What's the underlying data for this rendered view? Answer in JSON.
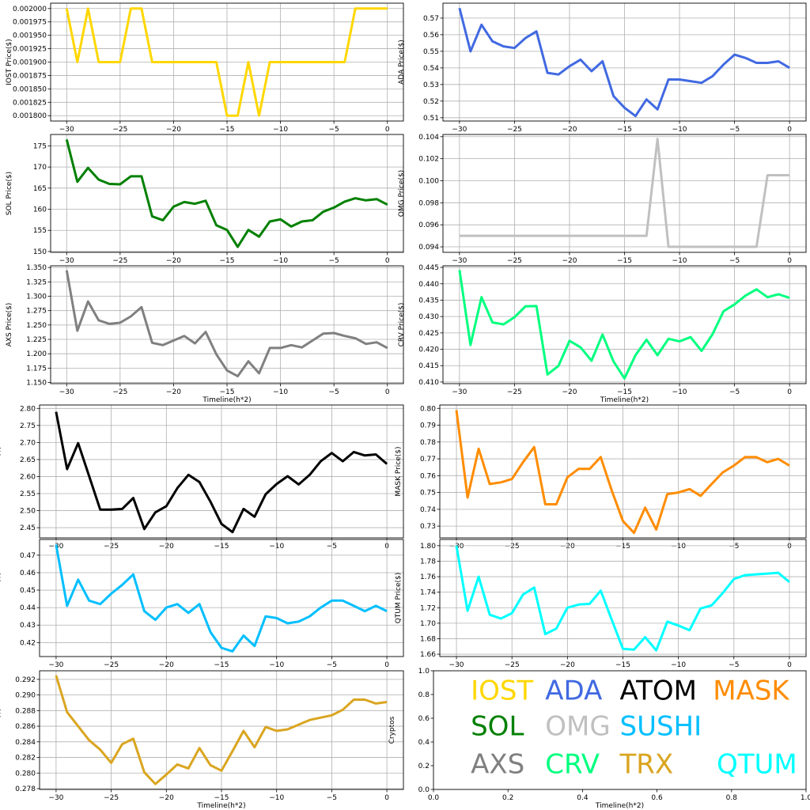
{
  "chart_data": [
    {
      "type": "line",
      "id": "iost",
      "ylabel": "IOST Price($)",
      "color": "#FFD700",
      "x": [
        -30,
        -29,
        -28,
        -27,
        -26,
        -25,
        -24,
        -23,
        -22,
        -21,
        -20,
        -19,
        -18,
        -17,
        -16,
        -15,
        -14,
        -13,
        -12,
        -11,
        -10,
        -9,
        -8,
        -7,
        -6,
        -5,
        -4,
        -3,
        -2,
        -1,
        0
      ],
      "values": [
        0.002,
        0.0019,
        0.002,
        0.0019,
        0.0019,
        0.0019,
        0.002,
        0.002,
        0.0019,
        0.0019,
        0.0019,
        0.0019,
        0.0019,
        0.0019,
        0.0019,
        0.0018,
        0.0018,
        0.0019,
        0.0018,
        0.0019,
        0.0019,
        0.0019,
        0.0019,
        0.0019,
        0.0019,
        0.0019,
        0.0019,
        0.002,
        0.002,
        0.002,
        0.002
      ],
      "xlim": [
        -31.5,
        1.5
      ],
      "ylim": [
        0.00179,
        0.00201
      ],
      "xticks": [
        -30,
        -25,
        -20,
        -15,
        -10,
        -5,
        0
      ],
      "yticks": [
        0.0018,
        0.001825,
        0.00185,
        0.001875,
        0.0019,
        0.001925,
        0.00195,
        0.001975,
        0.002
      ],
      "ytick_labels": [
        "0.001800",
        "0.001825",
        "0.001850",
        "0.001875",
        "0.001900",
        "0.001925",
        "0.001950",
        "0.001975",
        "0.002000"
      ],
      "xlabel": ""
    },
    {
      "type": "line",
      "id": "ada",
      "ylabel": "ADA  Price($)",
      "color": "#4169E1",
      "x": [
        -30,
        -29,
        -28,
        -27,
        -26,
        -25,
        -24,
        -23,
        -22,
        -21,
        -20,
        -19,
        -18,
        -17,
        -16,
        -15,
        -14,
        -13,
        -12,
        -11,
        -10,
        -9,
        -8,
        -7,
        -6,
        -5,
        -4,
        -3,
        -2,
        -1,
        0
      ],
      "values": [
        0.576,
        0.55,
        0.566,
        0.556,
        0.553,
        0.552,
        0.558,
        0.562,
        0.537,
        0.536,
        0.541,
        0.545,
        0.538,
        0.544,
        0.523,
        0.516,
        0.511,
        0.521,
        0.515,
        0.533,
        0.533,
        0.532,
        0.531,
        0.535,
        0.542,
        0.548,
        0.546,
        0.543,
        0.543,
        0.544,
        0.54
      ],
      "xlim": [
        -31.5,
        1.5
      ],
      "ylim": [
        0.508,
        0.579
      ],
      "xticks": [
        -30,
        -25,
        -20,
        -15,
        -10,
        -5,
        0
      ],
      "yticks": [
        0.51,
        0.52,
        0.53,
        0.54,
        0.55,
        0.56,
        0.57
      ],
      "ytick_labels": [
        "0.51",
        "0.52",
        "0.53",
        "0.54",
        "0.55",
        "0.56",
        "0.57"
      ],
      "xlabel": ""
    },
    {
      "type": "line",
      "id": "sol",
      "ylabel": "SOL Price($)",
      "color": "#008000",
      "x": [
        -30,
        -29,
        -28,
        -27,
        -26,
        -25,
        -24,
        -23,
        -22,
        -21,
        -20,
        -19,
        -18,
        -17,
        -16,
        -15,
        -14,
        -13,
        -12,
        -11,
        -10,
        -9,
        -8,
        -7,
        -6,
        -5,
        -4,
        -3,
        -2,
        -1,
        0
      ],
      "values": [
        176.5,
        166.5,
        169.8,
        167,
        166,
        165.9,
        167.8,
        167.8,
        158.3,
        157.4,
        160.6,
        161.7,
        161.3,
        162,
        156.2,
        155.1,
        151.1,
        155.1,
        153.5,
        157.1,
        157.6,
        155.9,
        157.1,
        157.4,
        159.4,
        160.4,
        161.8,
        162.6,
        162.1,
        162.4,
        161.1
      ],
      "xlim": [
        -31.5,
        1.5
      ],
      "ylim": [
        149.8,
        177.7
      ],
      "xticks": [
        -30,
        -25,
        -20,
        -15,
        -10,
        -5,
        0
      ],
      "yticks": [
        150,
        155,
        160,
        165,
        170,
        175
      ],
      "ytick_labels": [
        "150",
        "155",
        "160",
        "165",
        "170",
        "175"
      ],
      "xlabel": ""
    },
    {
      "type": "line",
      "id": "omg",
      "ylabel": "OMG  Price($)",
      "color": "#C0C0C0",
      "x": [
        -30,
        -29,
        -28,
        -27,
        -26,
        -25,
        -24,
        -23,
        -22,
        -21,
        -20,
        -19,
        -18,
        -17,
        -16,
        -15,
        -14,
        -13,
        -12,
        -11,
        -10,
        -9,
        -8,
        -7,
        -6,
        -5,
        -4,
        -3,
        -2,
        -1,
        0
      ],
      "values": [
        0.095,
        0.095,
        0.095,
        0.095,
        0.095,
        0.095,
        0.095,
        0.095,
        0.095,
        0.095,
        0.095,
        0.095,
        0.095,
        0.095,
        0.095,
        0.095,
        0.095,
        0.095,
        0.1038,
        0.094,
        0.094,
        0.094,
        0.094,
        0.094,
        0.094,
        0.094,
        0.094,
        0.094,
        0.1005,
        0.1005,
        0.1005
      ],
      "xlim": [
        -31.5,
        1.5
      ],
      "ylim": [
        0.0935,
        0.1042
      ],
      "xticks": [
        -30,
        -25,
        -20,
        -15,
        -10,
        -5,
        0
      ],
      "yticks": [
        0.094,
        0.096,
        0.098,
        0.1,
        0.102,
        0.104
      ],
      "ytick_labels": [
        "0.094",
        "0.096",
        "0.098",
        "0.100",
        "0.102",
        "0.104"
      ],
      "xlabel": ""
    },
    {
      "type": "line",
      "id": "axs",
      "ylabel": "AXS Price($)",
      "color": "#808080",
      "x": [
        -30,
        -29,
        -28,
        -27,
        -26,
        -25,
        -24,
        -23,
        -22,
        -21,
        -20,
        -19,
        -18,
        -17,
        -16,
        -15,
        -14,
        -13,
        -12,
        -11,
        -10,
        -9,
        -8,
        -7,
        -6,
        -5,
        -4,
        -3,
        -2,
        -1,
        0
      ],
      "values": [
        1.345,
        1.24,
        1.291,
        1.258,
        1.252,
        1.254,
        1.265,
        1.281,
        1.219,
        1.215,
        1.223,
        1.231,
        1.218,
        1.238,
        1.199,
        1.171,
        1.161,
        1.187,
        1.166,
        1.21,
        1.21,
        1.215,
        1.211,
        1.223,
        1.235,
        1.236,
        1.231,
        1.227,
        1.217,
        1.22,
        1.21
      ],
      "xlim": [
        -31.5,
        1.5
      ],
      "ylim": [
        1.148,
        1.353
      ],
      "xticks": [
        -30,
        -25,
        -20,
        -15,
        -10,
        -5,
        0
      ],
      "yticks": [
        1.15,
        1.175,
        1.2,
        1.225,
        1.25,
        1.275,
        1.3,
        1.325,
        1.35
      ],
      "ytick_labels": [
        "1.150",
        "1.175",
        "1.200",
        "1.225",
        "1.250",
        "1.275",
        "1.300",
        "1.325",
        "1.350"
      ],
      "xlabel": "Timeline(h*2)"
    },
    {
      "type": "line",
      "id": "crv",
      "ylabel": "CRV  Price($)",
      "color": "#00FF7F",
      "x": [
        -30,
        -29,
        -28,
        -27,
        -26,
        -25,
        -24,
        -23,
        -22,
        -21,
        -20,
        -19,
        -18,
        -17,
        -16,
        -15,
        -14,
        -13,
        -12,
        -11,
        -10,
        -9,
        -8,
        -7,
        -6,
        -5,
        -4,
        -3,
        -2,
        -1,
        0
      ],
      "values": [
        0.4442,
        0.4213,
        0.4359,
        0.4282,
        0.4276,
        0.4298,
        0.4331,
        0.4332,
        0.4123,
        0.4149,
        0.4226,
        0.4206,
        0.4165,
        0.4245,
        0.4163,
        0.4111,
        0.4182,
        0.4229,
        0.4182,
        0.4232,
        0.4224,
        0.4237,
        0.4195,
        0.4246,
        0.4316,
        0.4337,
        0.4364,
        0.4383,
        0.4359,
        0.4368,
        0.4357
      ],
      "xlim": [
        -31.5,
        1.5
      ],
      "ylim": [
        0.4095,
        0.4455
      ],
      "xticks": [
        -30,
        -25,
        -20,
        -15,
        -10,
        -5,
        0
      ],
      "yticks": [
        0.41,
        0.415,
        0.42,
        0.425,
        0.43,
        0.435,
        0.44,
        0.445
      ],
      "ytick_labels": [
        "0.410",
        "0.415",
        "0.420",
        "0.425",
        "0.430",
        "0.435",
        "0.440",
        "0.445"
      ],
      "xlabel": "Timeline(h*2)"
    },
    {
      "type": "line",
      "id": "atom",
      "ylabel": "ATOM  Price($)",
      "color": "#000000",
      "x": [
        -30,
        -29,
        -28,
        -27,
        -26,
        -25,
        -24,
        -23,
        -22,
        -21,
        -20,
        -19,
        -18,
        -17,
        -16,
        -15,
        -14,
        -13,
        -12,
        -11,
        -10,
        -9,
        -8,
        -7,
        -6,
        -5,
        -4,
        -3,
        -2,
        -1,
        0
      ],
      "values": [
        2.79,
        2.622,
        2.698,
        2.601,
        2.503,
        2.503,
        2.505,
        2.537,
        2.446,
        2.495,
        2.513,
        2.566,
        2.605,
        2.584,
        2.526,
        2.461,
        2.437,
        2.505,
        2.482,
        2.548,
        2.578,
        2.601,
        2.577,
        2.605,
        2.645,
        2.669,
        2.645,
        2.672,
        2.662,
        2.665,
        2.637
      ],
      "xlim": [
        -31.5,
        1.5
      ],
      "ylim": [
        2.42,
        2.81
      ],
      "xticks": [
        -30,
        -25,
        -20,
        -15,
        -10,
        -5,
        0
      ],
      "yticks": [
        2.45,
        2.5,
        2.55,
        2.6,
        2.65,
        2.7,
        2.75,
        2.8
      ],
      "ytick_labels": [
        "2.45",
        "2.50",
        "2.55",
        "2.60",
        "2.65",
        "2.70",
        "2.75",
        "2.80"
      ],
      "xlabel": ""
    },
    {
      "type": "line",
      "id": "mask",
      "ylabel": "MASK  Price($)",
      "color": "#FF8C00",
      "x": [
        -30,
        -29,
        -28,
        -27,
        -26,
        -25,
        -24,
        -23,
        -22,
        -21,
        -20,
        -19,
        -18,
        -17,
        -16,
        -15,
        -14,
        -13,
        -12,
        -11,
        -10,
        -9,
        -8,
        -7,
        -6,
        -5,
        -4,
        -3,
        -2,
        -1,
        0
      ],
      "values": [
        0.799,
        0.747,
        0.776,
        0.755,
        0.756,
        0.758,
        0.768,
        0.777,
        0.743,
        0.743,
        0.759,
        0.764,
        0.764,
        0.771,
        0.751,
        0.733,
        0.726,
        0.741,
        0.728,
        0.749,
        0.75,
        0.752,
        0.748,
        0.755,
        0.762,
        0.766,
        0.771,
        0.771,
        0.768,
        0.77,
        0.766
      ],
      "xlim": [
        -31.5,
        1.5
      ],
      "ylim": [
        0.723,
        0.802
      ],
      "xticks": [
        -30,
        -25,
        -20,
        -15,
        -10,
        -5,
        0
      ],
      "yticks": [
        0.73,
        0.74,
        0.75,
        0.76,
        0.77,
        0.78,
        0.79,
        0.8
      ],
      "ytick_labels": [
        "0.73",
        "0.74",
        "0.75",
        "0.76",
        "0.77",
        "0.78",
        "0.79",
        "0.80"
      ],
      "xlabel": ""
    },
    {
      "type": "line",
      "id": "sushi",
      "ylabel": "SUSHI  Price($)",
      "color": "#00BFFF",
      "x": [
        -30,
        -29,
        -28,
        -27,
        -26,
        -25,
        -24,
        -23,
        -22,
        -21,
        -20,
        -19,
        -18,
        -17,
        -16,
        -15,
        -14,
        -13,
        -12,
        -11,
        -10,
        -9,
        -8,
        -7,
        -6,
        -5,
        -4,
        -3,
        -2,
        -1,
        0
      ],
      "values": [
        0.476,
        0.441,
        0.456,
        0.444,
        0.442,
        0.448,
        0.453,
        0.459,
        0.438,
        0.433,
        0.44,
        0.442,
        0.437,
        0.442,
        0.426,
        0.417,
        0.415,
        0.424,
        0.418,
        0.435,
        0.434,
        0.431,
        0.432,
        0.435,
        0.44,
        0.444,
        0.444,
        0.441,
        0.438,
        0.441,
        0.438
      ],
      "xlim": [
        -31.5,
        1.5
      ],
      "ylim": [
        0.412,
        0.479
      ],
      "xticks": [
        -30,
        -25,
        -20,
        -15,
        -10,
        -5,
        0
      ],
      "yticks": [
        0.42,
        0.43,
        0.44,
        0.45,
        0.46,
        0.47
      ],
      "ytick_labels": [
        "0.42",
        "0.43",
        "0.44",
        "0.45",
        "0.46",
        "0.47"
      ],
      "xlabel": ""
    },
    {
      "type": "line",
      "id": "qtum",
      "ylabel": "QTUM Price($)",
      "color": "#00FFFF",
      "x": [
        -30,
        -29,
        -28,
        -27,
        -26,
        -25,
        -24,
        -23,
        -22,
        -21,
        -20,
        -19,
        -18,
        -17,
        -16,
        -15,
        -14,
        -13,
        -12,
        -11,
        -10,
        -9,
        -8,
        -7,
        -6,
        -5,
        -4,
        -3,
        -2,
        -1,
        0
      ],
      "values": [
        1.8,
        1.716,
        1.76,
        1.711,
        1.706,
        1.713,
        1.737,
        1.746,
        1.686,
        1.693,
        1.72,
        1.724,
        1.725,
        1.742,
        1.704,
        1.667,
        1.666,
        1.682,
        1.665,
        1.702,
        1.697,
        1.691,
        1.719,
        1.723,
        1.739,
        1.757,
        1.762,
        1.763,
        1.764,
        1.765,
        1.753
      ],
      "xlim": [
        -31.5,
        1.5
      ],
      "ylim": [
        1.657,
        1.808
      ],
      "xticks": [
        -30,
        -25,
        -20,
        -15,
        -10,
        -5,
        0
      ],
      "yticks": [
        1.66,
        1.68,
        1.7,
        1.72,
        1.74,
        1.76,
        1.78,
        1.8
      ],
      "ytick_labels": [
        "1.66",
        "1.68",
        "1.70",
        "1.72",
        "1.74",
        "1.76",
        "1.78",
        "1.80"
      ],
      "xlabel": ""
    },
    {
      "type": "line",
      "id": "trx",
      "ylabel": "TRX Price($)",
      "color": "#DAA520",
      "x": [
        -30,
        -29,
        -28,
        -27,
        -26,
        -25,
        -24,
        -23,
        -22,
        -21,
        -20,
        -19,
        -18,
        -17,
        -16,
        -15,
        -14,
        -13,
        -12,
        -11,
        -10,
        -9,
        -8,
        -7,
        -6,
        -5,
        -4,
        -3,
        -2,
        -1,
        0
      ],
      "values": [
        0.2925,
        0.2878,
        0.286,
        0.2842,
        0.283,
        0.2813,
        0.2837,
        0.2844,
        0.2801,
        0.2786,
        0.2798,
        0.2811,
        0.2806,
        0.2832,
        0.281,
        0.2803,
        0.2828,
        0.2854,
        0.2833,
        0.2859,
        0.2854,
        0.2856,
        0.2862,
        0.2868,
        0.2871,
        0.2874,
        0.2881,
        0.2894,
        0.2894,
        0.2889,
        0.2891
      ],
      "xlim": [
        -31.5,
        1.5
      ],
      "ylim": [
        0.2779,
        0.2931
      ],
      "xticks": [
        -30,
        -25,
        -20,
        -15,
        -10,
        -5,
        0
      ],
      "yticks": [
        0.278,
        0.28,
        0.282,
        0.284,
        0.286,
        0.288,
        0.29,
        0.292
      ],
      "ytick_labels": [
        "0.278",
        "0.280",
        "0.282",
        "0.284",
        "0.286",
        "0.288",
        "0.290",
        "0.292"
      ],
      "xlabel": "Timeline(h*2)"
    },
    {
      "type": "scatter",
      "id": "legend",
      "ylabel": "Cryptos",
      "xlabel": "Timeline(h*2)",
      "xlim": [
        0,
        1
      ],
      "ylim": [
        0,
        1
      ],
      "xticks": [
        0,
        0.2,
        0.4,
        0.6,
        0.8,
        1
      ],
      "xtick_labels": [
        "0.0",
        "0.2",
        "0.4",
        "0.6",
        "0.8",
        "1.0"
      ],
      "yticks": [
        0,
        0.2,
        0.4,
        0.6,
        0.8,
        1
      ],
      "ytick_labels": [
        "0.0",
        "0.2",
        "0.4",
        "0.6",
        "0.8",
        "1.0"
      ],
      "words": [
        {
          "text": "IOST",
          "color": "#FFD700",
          "x": 0.1,
          "y": 0.82
        },
        {
          "text": "ADA",
          "color": "#4169E1",
          "x": 0.3,
          "y": 0.82
        },
        {
          "text": "ATOM",
          "color": "#000000",
          "x": 0.5,
          "y": 0.82
        },
        {
          "text": "MASK",
          "color": "#FF8C00",
          "x": 0.75,
          "y": 0.82
        },
        {
          "text": "SOL",
          "color": "#008000",
          "x": 0.1,
          "y": 0.52
        },
        {
          "text": "OMG",
          "color": "#C0C0C0",
          "x": 0.3,
          "y": 0.52
        },
        {
          "text": "SUSHI",
          "color": "#00BFFF",
          "x": 0.5,
          "y": 0.52
        },
        {
          "text": "AXS",
          "color": "#808080",
          "x": 0.1,
          "y": 0.2
        },
        {
          "text": "CRV",
          "color": "#00FF7F",
          "x": 0.3,
          "y": 0.2
        },
        {
          "text": "TRX",
          "color": "#DAA520",
          "x": 0.5,
          "y": 0.2
        },
        {
          "text": "QTUM",
          "color": "#00FFFF",
          "x": 0.76,
          "y": 0.2
        }
      ]
    }
  ]
}
